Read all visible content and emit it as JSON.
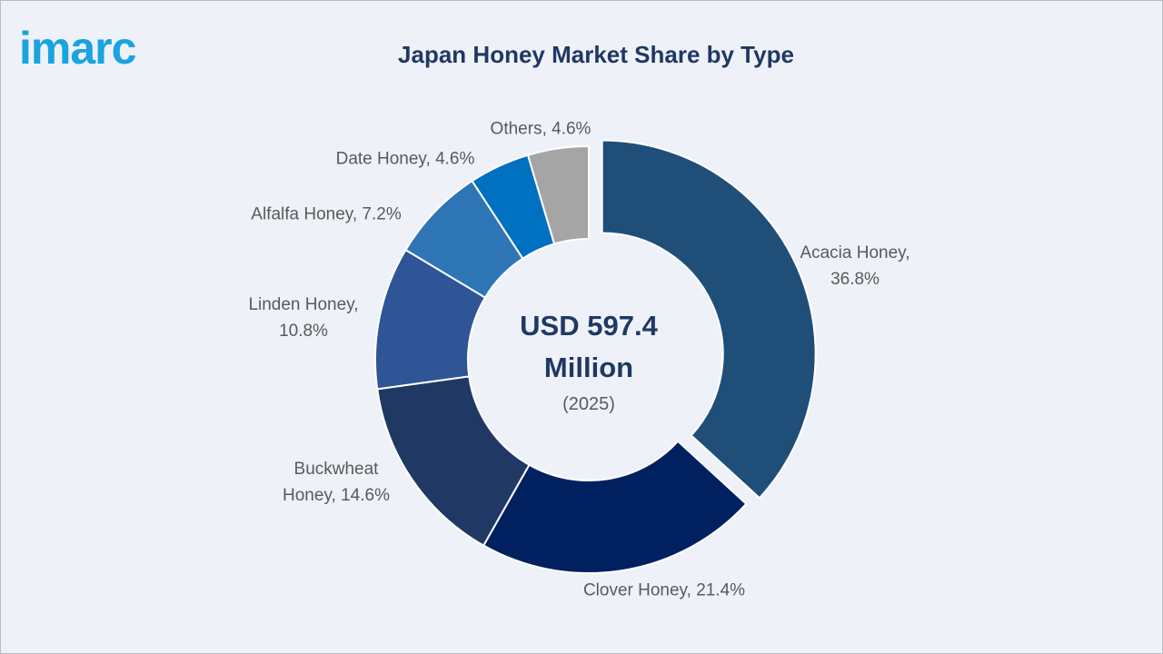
{
  "logo": "imarc",
  "chart_data": {
    "type": "donut",
    "title": "Japan Honey Market Share by Type",
    "center_label": "USD 597.4 Million",
    "center_sublabel": "(2025)",
    "values": [
      36.8,
      21.4,
      14.6,
      10.8,
      7.2,
      4.6,
      4.6
    ],
    "value_labels": [
      "Acacia Honey, 36.8%",
      "Clover Honey, 21.4%",
      "Buckwheat Honey, 14.6%",
      "Linden Honey, 10.8%",
      "Alfalfa Honey, 7.2%",
      "Date Honey, 4.6%",
      "Others, 4.6%"
    ],
    "colors": [
      "#1f4e79",
      "#002060",
      "#203864",
      "#2f5597",
      "#2e75b6",
      "#0070c0",
      "#a5a5a5"
    ],
    "exploded": [
      true,
      false,
      false,
      false,
      false,
      false,
      false
    ]
  }
}
